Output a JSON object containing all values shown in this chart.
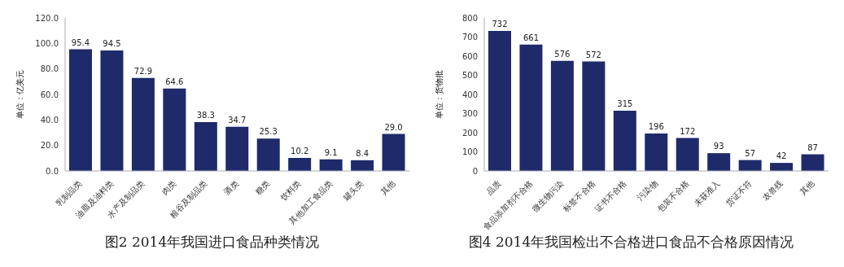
{
  "chart_data": [
    {
      "type": "bar",
      "title": "图2 2014年我国进口食品种类情况",
      "ylabel": "单位：亿美元",
      "categories": [
        "乳制品类",
        "油脂及油料类",
        "水产及制品类",
        "肉类",
        "粮谷及制品类",
        "酒类",
        "糖类",
        "饮料类",
        "其他加工食品类",
        "罐头类",
        "其他"
      ],
      "values": [
        95.4,
        94.5,
        72.9,
        64.6,
        38.3,
        34.7,
        25.3,
        10.2,
        9.1,
        8.4,
        29.0
      ],
      "color": "#1f2a6b",
      "ylim": [
        0,
        120
      ],
      "yticks": [
        {
          "value": 0,
          "label": "0.0"
        },
        {
          "value": 20,
          "label": "20.0"
        },
        {
          "value": 40,
          "label": "40.0"
        },
        {
          "value": 60,
          "label": "60.0"
        },
        {
          "value": 80,
          "label": "80.0"
        },
        {
          "value": 100,
          "label": "100.0"
        },
        {
          "value": 120,
          "label": "120.0"
        }
      ],
      "value_labels": [
        "95.4",
        "94.5",
        "72.9",
        "64.6",
        "38.3",
        "34.7",
        "25.3",
        "10.2",
        "9.1",
        "8.4",
        "29.0"
      ],
      "grid": false,
      "legend": false
    },
    {
      "type": "bar",
      "title": "图4 2014年我国检出不合格进口食品不合格原因情况",
      "ylabel": "单位：货物批",
      "categories": [
        "品质",
        "食品添加剂不合格",
        "微生物污染",
        "标签不合格",
        "证书不合格",
        "污染物",
        "包装不合格",
        "未获准入",
        "货证不符",
        "农兽残",
        "其他"
      ],
      "values": [
        732,
        661,
        576,
        572,
        315,
        196,
        172,
        93,
        57,
        42,
        87
      ],
      "color": "#1f2a6b",
      "ylim": [
        0,
        800
      ],
      "yticks": [
        0,
        100,
        200,
        300,
        400,
        500,
        600,
        700,
        800
      ],
      "data_labels": true,
      "grid": false,
      "legend": false
    }
  ]
}
